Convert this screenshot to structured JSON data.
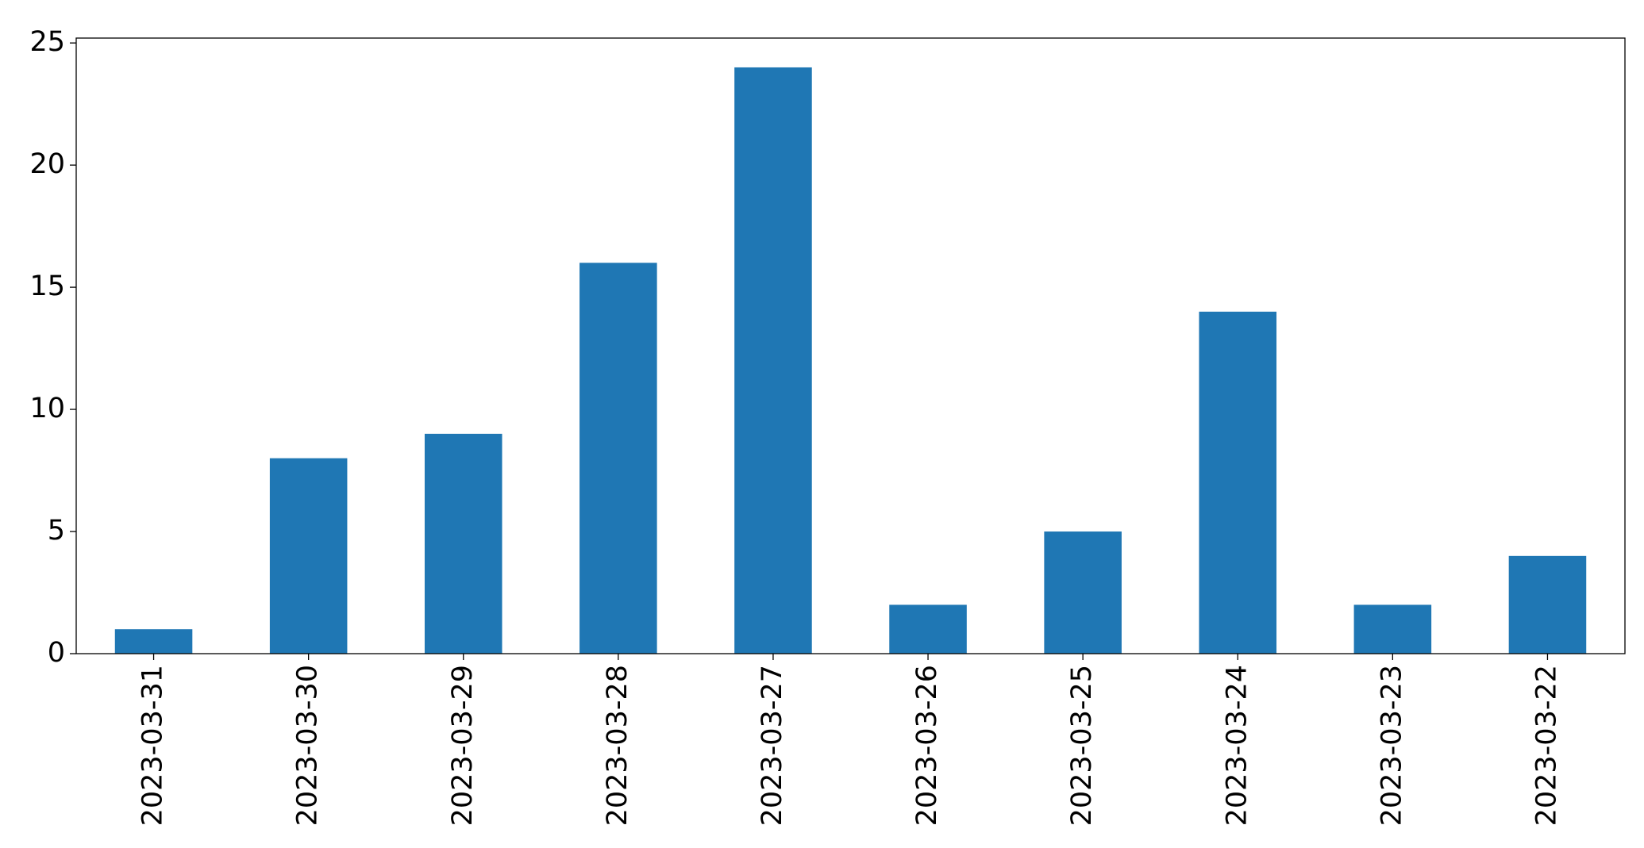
{
  "chart_data": {
    "type": "bar",
    "categories": [
      "2023-03-31",
      "2023-03-30",
      "2023-03-29",
      "2023-03-28",
      "2023-03-27",
      "2023-03-26",
      "2023-03-25",
      "2023-03-24",
      "2023-03-23",
      "2023-03-22"
    ],
    "values": [
      1,
      8,
      9,
      16,
      24,
      2,
      5,
      14,
      2,
      4
    ],
    "color": "#1f77b4",
    "ylim": [
      0,
      25.2
    ],
    "yticks": [
      0,
      5,
      10,
      15,
      20,
      25
    ],
    "grid": false
  }
}
